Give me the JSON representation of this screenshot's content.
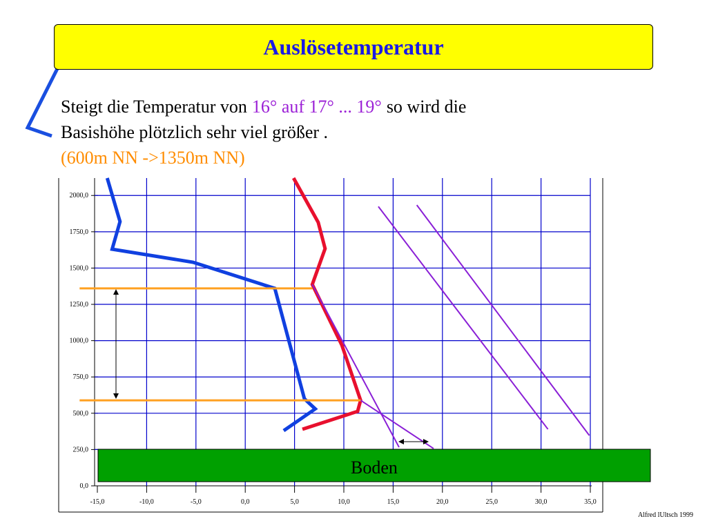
{
  "title": "Auslösetemperatur",
  "text": {
    "lines": [
      [
        {
          "text": "Steigt die Temperatur von",
          "color": "#000000"
        },
        {
          "text": "16° auf 17° ... 19°",
          "color": "#9b1fd6"
        },
        {
          "text": "so wird die",
          "color": "#000000"
        }
      ],
      [
        {
          "text": "Basishöhe plötzlich sehr viel größer .",
          "color": "#000000"
        }
      ],
      [
        {
          "text": "(600m NN ->1350m NN)",
          "color": "#ff8c00"
        }
      ]
    ]
  },
  "footer": "Alfred lUltsch 1999",
  "chart_data": {
    "type": "line",
    "xlim": [
      -15,
      35
    ],
    "ylim": [
      0,
      2120
    ],
    "grid": true,
    "grid_color": "#0000cc",
    "xticks": [
      {
        "value": -15,
        "label": "-15,0"
      },
      {
        "value": -10,
        "label": "-10,0"
      },
      {
        "value": -5,
        "label": "-5,0"
      },
      {
        "value": 0,
        "label": "0,0"
      },
      {
        "value": 5,
        "label": "5,0"
      },
      {
        "value": 10,
        "label": "10,0"
      },
      {
        "value": 15,
        "label": "15,0"
      },
      {
        "value": 20,
        "label": "20,0"
      },
      {
        "value": 25,
        "label": "25,0"
      },
      {
        "value": 30,
        "label": "30,0"
      },
      {
        "value": 35,
        "label": "35,0"
      }
    ],
    "yticks": [
      {
        "value": 0,
        "label": "0,0"
      },
      {
        "value": 250,
        "label": "250,0"
      },
      {
        "value": 500,
        "label": "500,0"
      },
      {
        "value": 750,
        "label": "750,0"
      },
      {
        "value": 1000,
        "label": "1000,0"
      },
      {
        "value": 1250,
        "label": "1250,0"
      },
      {
        "value": 1500,
        "label": "1500,0"
      },
      {
        "value": 1750,
        "label": "1750,0"
      },
      {
        "value": 2000,
        "label": "2000,0"
      }
    ],
    "series": [
      {
        "color": "#1040e0",
        "width": 5,
        "x": [
          3.9,
          7.1,
          6.0,
          3.0,
          -5.3,
          -13.5,
          -12.7,
          -14.0
        ],
        "values": [
          380,
          530,
          600,
          1360,
          1540,
          1630,
          1820,
          2120
        ]
      },
      {
        "color": "#e8102e",
        "width": 5,
        "x": [
          5.8,
          11.4,
          11.7,
          9.8,
          6.8,
          8.1,
          7.4,
          4.9
        ],
        "values": [
          390,
          513,
          589,
          969,
          1387,
          1634,
          1815,
          2120
        ]
      },
      {
        "color": "#8a1fd6",
        "width": 2,
        "x": [
          6.8,
          15.6
        ],
        "values": [
          1387,
          266
        ]
      },
      {
        "color": "#8a1fd6",
        "width": 2,
        "x": [
          11.7,
          19.1
        ],
        "values": [
          589,
          257
        ]
      },
      {
        "color": "#8a1fd6",
        "width": 2,
        "x": [
          13.5,
          30.7
        ],
        "values": [
          1924,
          390
        ]
      },
      {
        "color": "#8a1fd6",
        "width": 2,
        "x": [
          17.4,
          34.9
        ],
        "values": [
          1934,
          347
        ]
      },
      {
        "color": "#ffa020",
        "width": 3,
        "x": [
          -16.8,
          6.8
        ],
        "values": [
          1360,
          1360
        ]
      },
      {
        "color": "#ffa020",
        "width": 3,
        "x": [
          -16.8,
          11.7
        ],
        "values": [
          589,
          589
        ]
      }
    ],
    "ground_label": "Boden",
    "ground_color": "#00a000"
  }
}
